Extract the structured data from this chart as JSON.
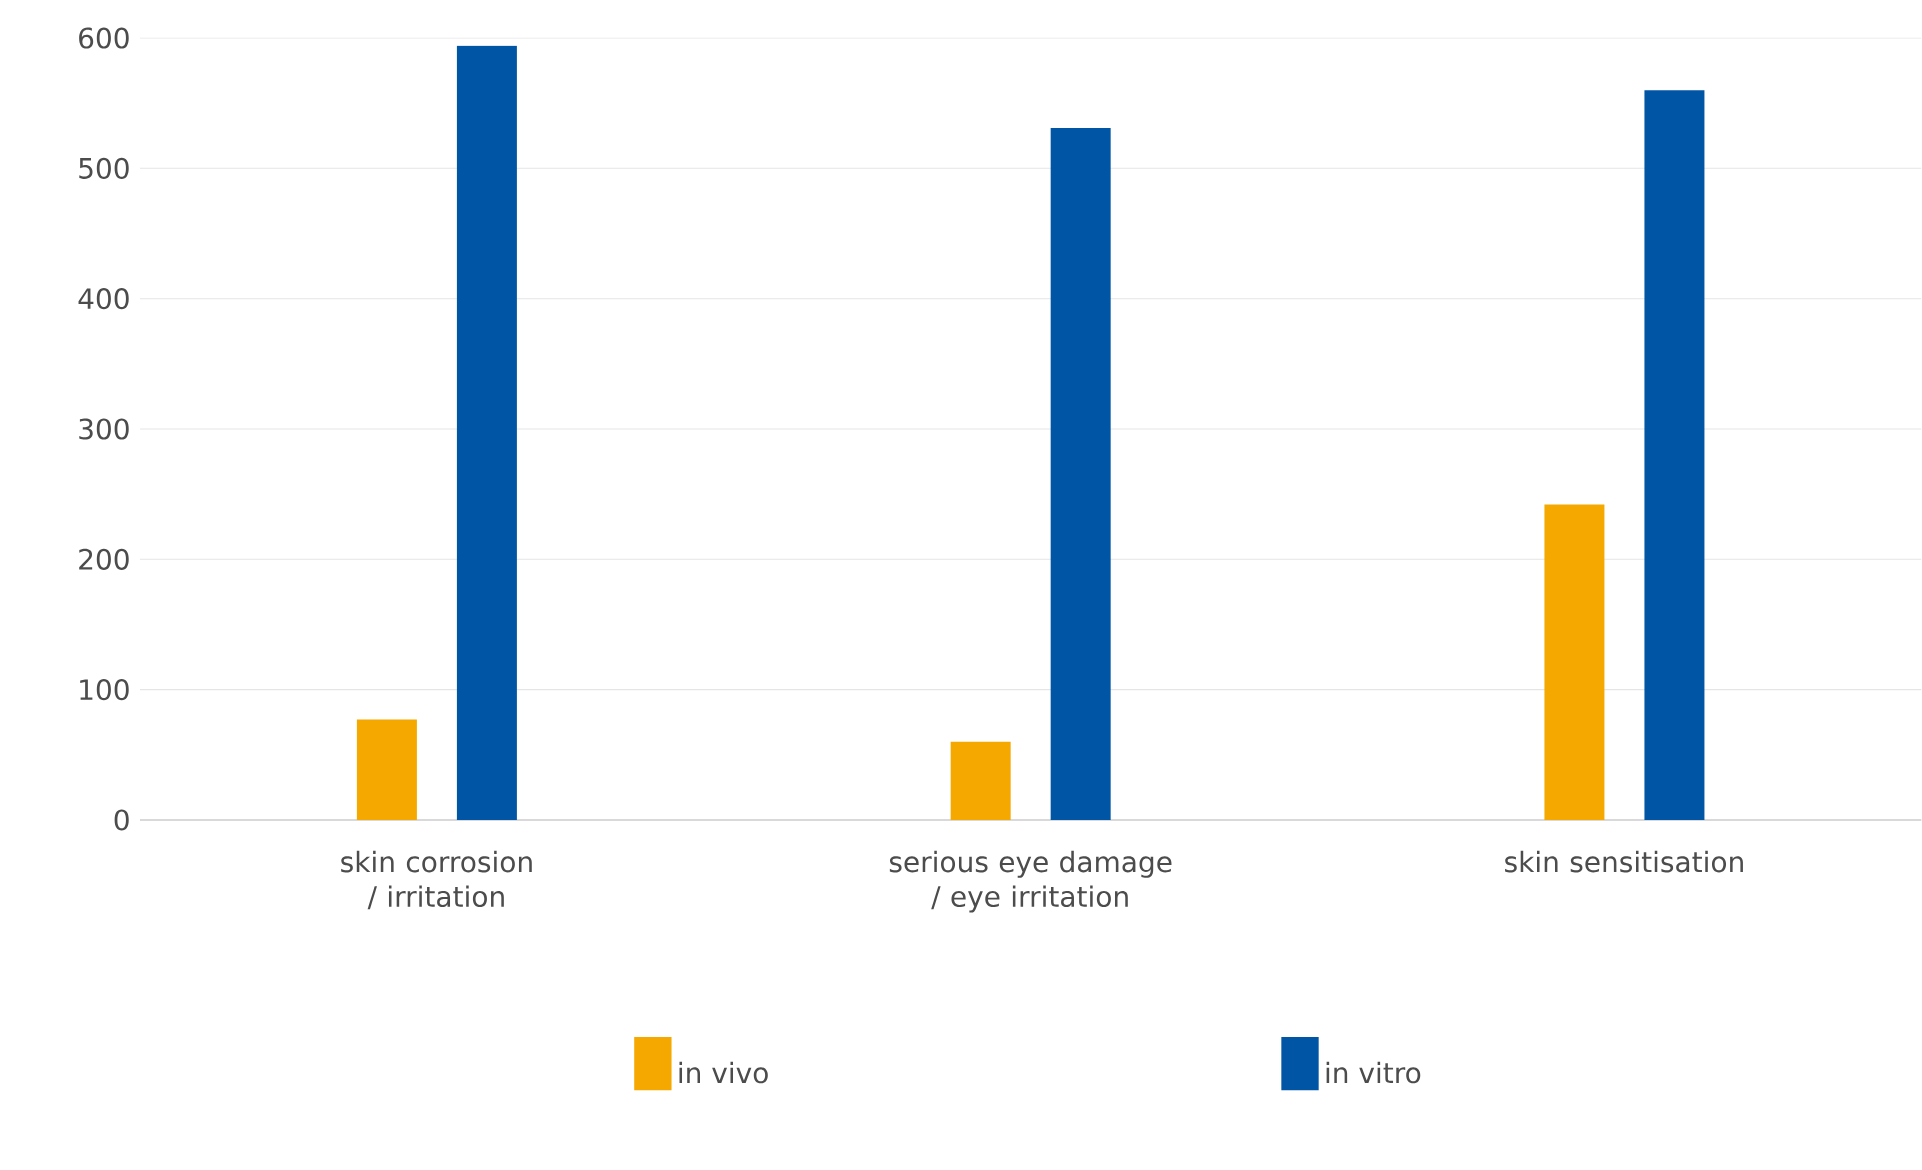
{
  "chart_data": {
    "type": "bar",
    "categories": [
      "skin corrosion / irritation",
      "serious eye damage / eye irritation",
      "skin sensitisation"
    ],
    "series": [
      {
        "name": "in vivo",
        "color": "#f5a800",
        "values": [
          77,
          60,
          242
        ]
      },
      {
        "name": "in vitro",
        "color": "#0055a5",
        "values": [
          594,
          531,
          560
        ]
      }
    ],
    "ylim": [
      0,
      600
    ],
    "yticks": [
      0,
      100,
      200,
      300,
      400,
      500,
      600
    ],
    "grid": "y",
    "legend": "bottom"
  }
}
